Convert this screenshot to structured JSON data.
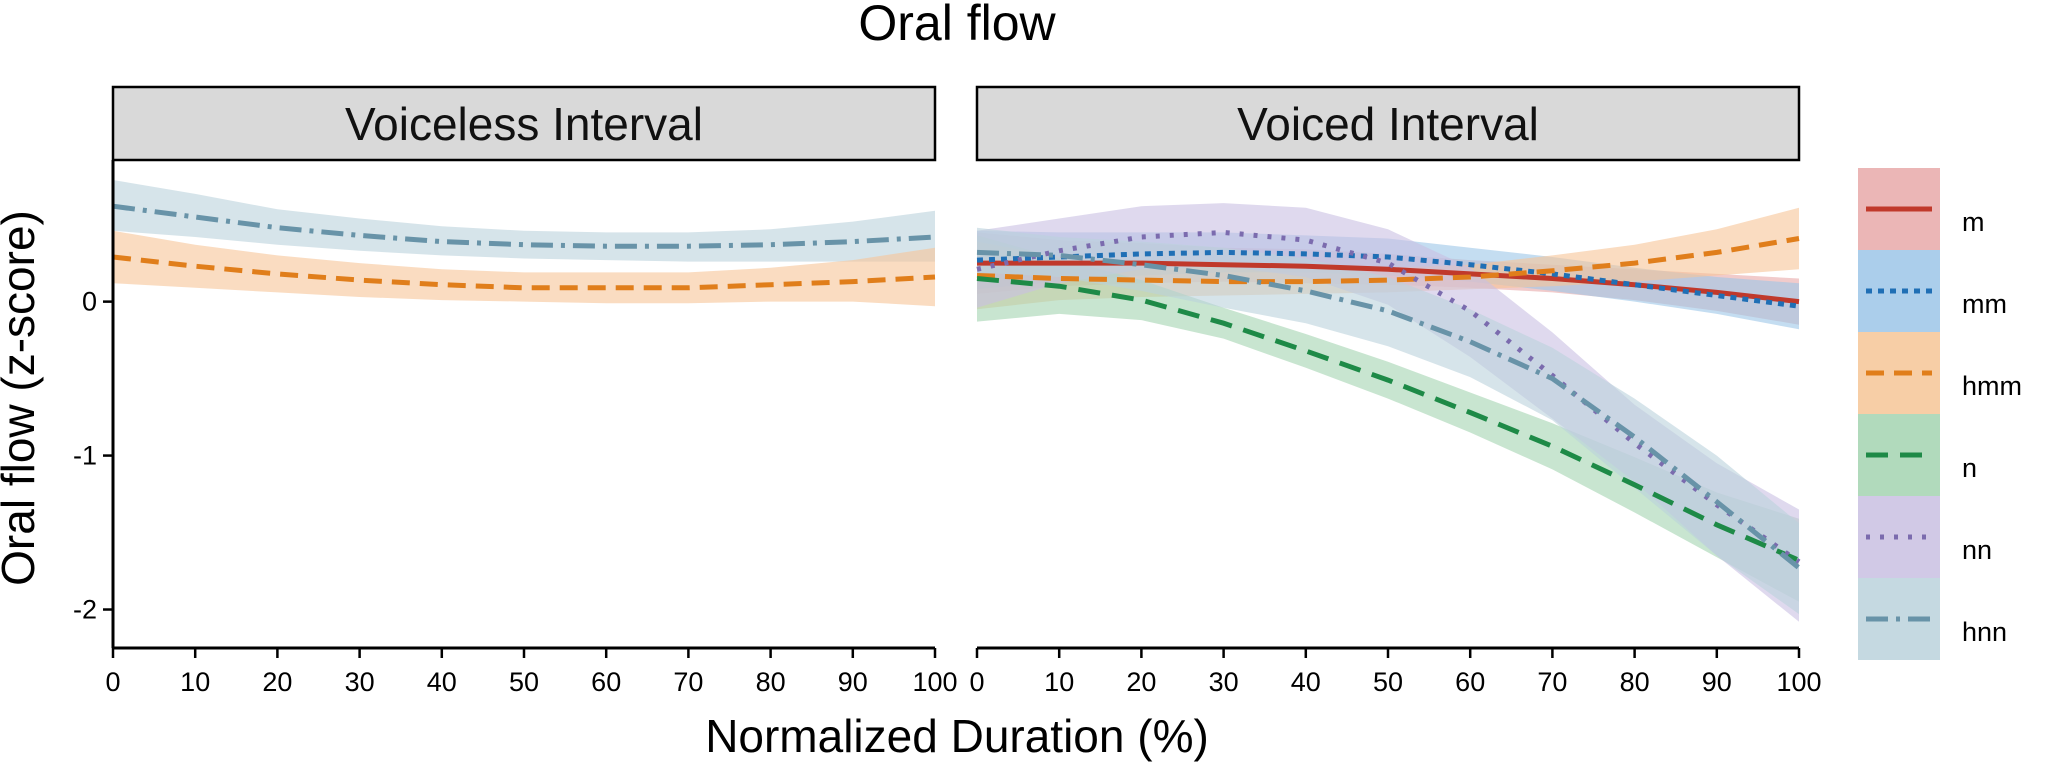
{
  "chart_data": {
    "type": "line",
    "title": "Oral flow",
    "xlabel": "Normalized Duration (%)",
    "ylabel": "Oral flow (z-score)",
    "xlim": [
      0,
      100
    ],
    "ylim": [
      -2.25,
      0.92
    ],
    "x_ticks": [
      "0",
      "10",
      "20",
      "30",
      "40",
      "50",
      "60",
      "70",
      "80",
      "90",
      "100"
    ],
    "y_ticks": [
      {
        "value": -2,
        "label": "-2"
      },
      {
        "value": -1,
        "label": "-1"
      },
      {
        "value": 0,
        "label": "0"
      }
    ],
    "x": [
      0,
      10,
      20,
      30,
      40,
      50,
      60,
      70,
      80,
      90,
      100
    ],
    "legend_position": "right",
    "legend": [
      {
        "key": "m",
        "label": "m",
        "color": "#C0392B",
        "fill": "#E8A9A9",
        "dash": "none"
      },
      {
        "key": "mm",
        "label": "mm",
        "color": "#1F6FB5",
        "fill": "#9CC6E8",
        "dash": "6,6"
      },
      {
        "key": "hmm",
        "label": "hmm",
        "color": "#E07E1B",
        "fill": "#F6C597",
        "dash": "18,10"
      },
      {
        "key": "n",
        "label": "n",
        "color": "#1E8A47",
        "fill": "#A3D4B0",
        "dash": "22,12"
      },
      {
        "key": "nn",
        "label": "nn",
        "color": "#7B6BAE",
        "fill": "#C9C0E2",
        "dash": "4,10"
      },
      {
        "key": "hnn",
        "label": "hnn",
        "color": "#6893A8",
        "fill": "#BBD2DC",
        "dash": "22,8,4,8"
      }
    ],
    "panels": [
      {
        "label": "Voiceless Interval",
        "series": [
          {
            "key": "hnn",
            "values": [
              0.62,
              0.55,
              0.48,
              0.43,
              0.39,
              0.37,
              0.36,
              0.36,
              0.37,
              0.39,
              0.42
            ],
            "lower": [
              0.46,
              0.42,
              0.37,
              0.33,
              0.3,
              0.28,
              0.27,
              0.26,
              0.26,
              0.26,
              0.26
            ],
            "upper": [
              0.79,
              0.7,
              0.6,
              0.54,
              0.49,
              0.46,
              0.45,
              0.45,
              0.47,
              0.52,
              0.59
            ]
          },
          {
            "key": "hmm",
            "values": [
              0.29,
              0.23,
              0.18,
              0.14,
              0.11,
              0.09,
              0.09,
              0.09,
              0.11,
              0.13,
              0.16
            ],
            "lower": [
              0.12,
              0.09,
              0.06,
              0.03,
              0.01,
              0.0,
              -0.01,
              -0.01,
              0.0,
              0.0,
              -0.03
            ],
            "upper": [
              0.46,
              0.37,
              0.3,
              0.25,
              0.21,
              0.19,
              0.19,
              0.19,
              0.22,
              0.27,
              0.35
            ]
          }
        ]
      },
      {
        "label": "Voiced Interval",
        "series": [
          {
            "key": "m",
            "values": [
              0.25,
              0.25,
              0.25,
              0.24,
              0.23,
              0.21,
              0.18,
              0.15,
              0.11,
              0.06,
              0.0
            ],
            "lower": [
              0.05,
              0.1,
              0.12,
              0.13,
              0.12,
              0.11,
              0.09,
              0.06,
              0.01,
              -0.06,
              -0.15
            ],
            "upper": [
              0.45,
              0.4,
              0.38,
              0.35,
              0.34,
              0.31,
              0.27,
              0.24,
              0.21,
              0.18,
              0.15
            ]
          },
          {
            "key": "mm",
            "values": [
              0.27,
              0.29,
              0.31,
              0.32,
              0.31,
              0.29,
              0.24,
              0.18,
              0.11,
              0.04,
              -0.03
            ],
            "lower": [
              0.08,
              0.13,
              0.17,
              0.19,
              0.19,
              0.17,
              0.13,
              0.07,
              0.0,
              -0.08,
              -0.18
            ],
            "upper": [
              0.46,
              0.45,
              0.45,
              0.45,
              0.43,
              0.41,
              0.35,
              0.29,
              0.22,
              0.16,
              0.12
            ]
          },
          {
            "key": "hmm",
            "values": [
              0.17,
              0.15,
              0.14,
              0.13,
              0.13,
              0.14,
              0.16,
              0.2,
              0.25,
              0.32,
              0.41
            ],
            "lower": [
              -0.05,
              0.01,
              0.03,
              0.04,
              0.05,
              0.06,
              0.08,
              0.1,
              0.13,
              0.17,
              0.21
            ],
            "upper": [
              0.39,
              0.29,
              0.25,
              0.22,
              0.21,
              0.22,
              0.24,
              0.3,
              0.37,
              0.47,
              0.61
            ]
          },
          {
            "key": "n",
            "values": [
              0.15,
              0.1,
              0.01,
              -0.14,
              -0.32,
              -0.51,
              -0.72,
              -0.94,
              -1.19,
              -1.45,
              -1.68
            ],
            "lower": [
              -0.13,
              -0.08,
              -0.12,
              -0.24,
              -0.43,
              -0.63,
              -0.85,
              -1.09,
              -1.37,
              -1.66,
              -1.95
            ],
            "upper": [
              0.43,
              0.28,
              0.14,
              -0.04,
              -0.21,
              -0.39,
              -0.59,
              -0.79,
              -1.01,
              -1.24,
              -1.41
            ]
          },
          {
            "key": "nn",
            "values": [
              0.21,
              0.33,
              0.42,
              0.45,
              0.4,
              0.25,
              -0.06,
              -0.48,
              -0.92,
              -1.32,
              -1.69
            ],
            "lower": [
              -0.04,
              0.12,
              0.21,
              0.23,
              0.16,
              -0.02,
              -0.36,
              -0.76,
              -1.17,
              -1.65,
              -2.08
            ],
            "upper": [
              0.46,
              0.54,
              0.62,
              0.64,
              0.61,
              0.47,
              0.22,
              -0.2,
              -0.67,
              -1.05,
              -1.35
            ]
          },
          {
            "key": "hnn",
            "values": [
              0.32,
              0.3,
              0.24,
              0.17,
              0.07,
              -0.06,
              -0.26,
              -0.5,
              -0.88,
              -1.3,
              -1.73
            ],
            "lower": [
              0.19,
              0.16,
              0.07,
              -0.04,
              -0.14,
              -0.29,
              -0.49,
              -0.77,
              -1.21,
              -1.65,
              -2.03
            ],
            "upper": [
              0.48,
              0.42,
              0.39,
              0.35,
              0.28,
              0.16,
              -0.05,
              -0.3,
              -0.63,
              -1.0,
              -1.44
            ]
          }
        ]
      }
    ]
  }
}
